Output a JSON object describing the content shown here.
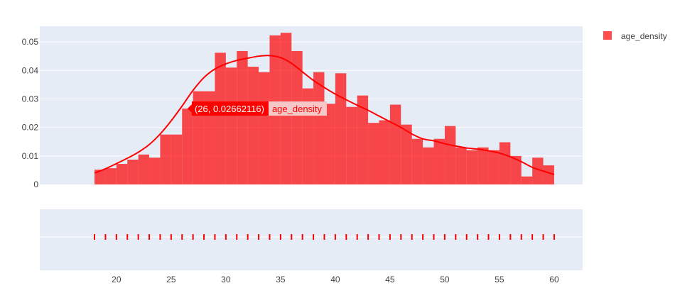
{
  "chart_data": {
    "type": "bar",
    "bin_size": 1,
    "x_range": [
      13,
      62.6
    ],
    "y_range": [
      0,
      0.0555
    ],
    "x_ticks": [
      20,
      25,
      30,
      35,
      40,
      45,
      50,
      55,
      60
    ],
    "y_ticks": [
      0,
      0.01,
      0.02,
      0.03,
      0.04,
      0.05
    ],
    "y_tick_labels": [
      "0",
      "0.01",
      "0.02",
      "0.03",
      "0.04",
      "0.05"
    ],
    "x_tick_labels": [
      "20",
      "25",
      "30",
      "35",
      "40",
      "45",
      "50",
      "55",
      "60"
    ],
    "grid": true,
    "legend_position": "top-right",
    "series": [
      {
        "name": "age_density",
        "type": "histogram",
        "color": "#ff0000",
        "bins": [
          {
            "x": 18,
            "y": 0.0052
          },
          {
            "x": 19,
            "y": 0.0057
          },
          {
            "x": 20,
            "y": 0.0072
          },
          {
            "x": 21,
            "y": 0.0087
          },
          {
            "x": 22,
            "y": 0.0105
          },
          {
            "x": 23,
            "y": 0.0094
          },
          {
            "x": 24,
            "y": 0.0175
          },
          {
            "x": 25,
            "y": 0.0175
          },
          {
            "x": 26,
            "y": 0.02662116
          },
          {
            "x": 27,
            "y": 0.0327
          },
          {
            "x": 28,
            "y": 0.0327
          },
          {
            "x": 29,
            "y": 0.0462
          },
          {
            "x": 30,
            "y": 0.041
          },
          {
            "x": 31,
            "y": 0.0468
          },
          {
            "x": 32,
            "y": 0.0413
          },
          {
            "x": 33,
            "y": 0.0394
          },
          {
            "x": 34,
            "y": 0.0523
          },
          {
            "x": 35,
            "y": 0.0532
          },
          {
            "x": 36,
            "y": 0.0468
          },
          {
            "x": 37,
            "y": 0.0337
          },
          {
            "x": 38,
            "y": 0.0394
          },
          {
            "x": 39,
            "y": 0.0283
          },
          {
            "x": 40,
            "y": 0.039
          },
          {
            "x": 41,
            "y": 0.0272
          },
          {
            "x": 42,
            "y": 0.0312
          },
          {
            "x": 43,
            "y": 0.0216
          },
          {
            "x": 44,
            "y": 0.0225
          },
          {
            "x": 45,
            "y": 0.028
          },
          {
            "x": 46,
            "y": 0.021
          },
          {
            "x": 47,
            "y": 0.016
          },
          {
            "x": 48,
            "y": 0.013
          },
          {
            "x": 49,
            "y": 0.016
          },
          {
            "x": 50,
            "y": 0.0205
          },
          {
            "x": 51,
            "y": 0.013
          },
          {
            "x": 52,
            "y": 0.012
          },
          {
            "x": 53,
            "y": 0.013
          },
          {
            "x": 54,
            "y": 0.012
          },
          {
            "x": 55,
            "y": 0.0148
          },
          {
            "x": 56,
            "y": 0.01
          },
          {
            "x": 57,
            "y": 0.0028
          },
          {
            "x": 58,
            "y": 0.0094
          },
          {
            "x": 59,
            "y": 0.0067
          }
        ],
        "curve": [
          [
            18,
            0.004
          ],
          [
            19,
            0.0055
          ],
          [
            20,
            0.0073
          ],
          [
            21,
            0.0092
          ],
          [
            22,
            0.0113
          ],
          [
            23,
            0.014
          ],
          [
            24,
            0.0177
          ],
          [
            25,
            0.0223
          ],
          [
            26,
            0.0275
          ],
          [
            27,
            0.033
          ],
          [
            28,
            0.0375
          ],
          [
            29,
            0.0405
          ],
          [
            30,
            0.0423
          ],
          [
            31,
            0.0435
          ],
          [
            32,
            0.0443
          ],
          [
            33,
            0.045
          ],
          [
            34,
            0.0452
          ],
          [
            35,
            0.0445
          ],
          [
            36,
            0.0425
          ],
          [
            37,
            0.0395
          ],
          [
            38,
            0.0365
          ],
          [
            39,
            0.034
          ],
          [
            40,
            0.0317
          ],
          [
            41,
            0.0297
          ],
          [
            42,
            0.0278
          ],
          [
            43,
            0.026
          ],
          [
            44,
            0.024
          ],
          [
            45,
            0.022
          ],
          [
            46,
            0.02
          ],
          [
            47,
            0.0177
          ],
          [
            48,
            0.016
          ],
          [
            49,
            0.0153
          ],
          [
            50,
            0.0143
          ],
          [
            51,
            0.0135
          ],
          [
            52,
            0.0128
          ],
          [
            53,
            0.0124
          ],
          [
            54,
            0.0118
          ],
          [
            55,
            0.011
          ],
          [
            56,
            0.0097
          ],
          [
            57,
            0.008
          ],
          [
            58,
            0.006
          ],
          [
            59,
            0.0047
          ],
          [
            60,
            0.0035
          ]
        ],
        "rug": [
          18,
          19,
          20,
          21,
          22,
          23,
          24,
          25,
          26,
          27,
          28,
          29,
          30,
          31,
          32,
          33,
          34,
          35,
          36,
          37,
          38,
          39,
          40,
          41,
          42,
          43,
          44,
          45,
          46,
          47,
          48,
          49,
          50,
          51,
          52,
          53,
          54,
          55,
          56,
          57,
          58,
          59,
          60
        ]
      }
    ],
    "hover": {
      "value_text": "(26, 0.02662116)",
      "series_text": "age_density",
      "x": 26,
      "y": 0.02662116
    }
  }
}
